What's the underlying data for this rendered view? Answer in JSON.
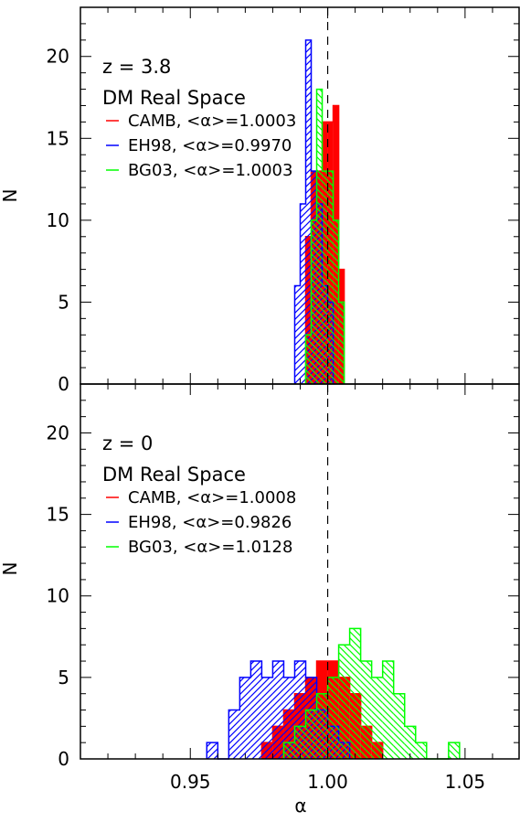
{
  "figure": {
    "xlabel": "α",
    "ylabel": "N"
  },
  "chart_data": [
    {
      "type": "histogram",
      "panel": "top",
      "annotation_lines": [
        "z = 3.8",
        "DM Real Space"
      ],
      "xlim": [
        0.91,
        1.07
      ],
      "ylim": [
        0,
        23
      ],
      "reference_line_x": 1.0,
      "xticks": [
        0.95,
        1.0,
        1.05
      ],
      "yticks": [
        0,
        5,
        10,
        15,
        20
      ],
      "ytick_labels": [
        "0",
        "5",
        "10",
        "15",
        "20"
      ],
      "xtick_labels": [],
      "ylabel": "N",
      "xlabel": "",
      "series": [
        {
          "name": "CAMB",
          "legend_label": "CAMB, <α>=1.0003",
          "style": "filled",
          "color": "#ff0000",
          "bins": [
            [
              0.992,
              0.994,
              9
            ],
            [
              0.994,
              0.996,
              13
            ],
            [
              0.996,
              0.998,
              13
            ],
            [
              0.998,
              1.0,
              16
            ],
            [
              1.0,
              1.002,
              16
            ],
            [
              1.002,
              1.004,
              17
            ],
            [
              1.004,
              1.006,
              7
            ]
          ]
        },
        {
          "name": "EH98",
          "legend_label": "EH98, <α>=0.9970",
          "style": "hatched",
          "color": "#0000ff",
          "bins": [
            [
              0.988,
              0.99,
              6
            ],
            [
              0.99,
              0.992,
              11
            ],
            [
              0.992,
              0.994,
              21
            ],
            [
              0.994,
              0.996,
              13
            ],
            [
              0.996,
              0.998,
              11
            ],
            [
              0.998,
              1.0,
              6
            ],
            [
              1.0,
              1.002,
              5
            ]
          ]
        },
        {
          "name": "BG03",
          "legend_label": "BG03, <α>=1.0003",
          "style": "hatched",
          "color": "#00ff00",
          "bins": [
            [
              0.992,
              0.994,
              3
            ],
            [
              0.994,
              0.996,
              10
            ],
            [
              0.996,
              0.998,
              18
            ],
            [
              0.998,
              1.0,
              13
            ],
            [
              1.0,
              1.002,
              13
            ],
            [
              1.002,
              1.004,
              10
            ],
            [
              1.004,
              1.006,
              5
            ]
          ]
        }
      ]
    },
    {
      "type": "histogram",
      "panel": "bottom",
      "annotation_lines": [
        "z = 0",
        "DM Real Space"
      ],
      "xlim": [
        0.91,
        1.07
      ],
      "ylim": [
        0,
        23
      ],
      "reference_line_x": 1.0,
      "xticks": [
        0.95,
        1.0,
        1.05
      ],
      "yticks": [
        0,
        5,
        10,
        15,
        20
      ],
      "ytick_labels": [
        "0",
        "5",
        "10",
        "15",
        "20"
      ],
      "xtick_labels": [
        "0.95",
        "1.00",
        "1.05"
      ],
      "ylabel": "N",
      "xlabel": "α",
      "series": [
        {
          "name": "CAMB",
          "legend_label": "CAMB, <α>=1.0008",
          "style": "filled",
          "color": "#ff0000",
          "bins": [
            [
              0.976,
              0.98,
              1
            ],
            [
              0.98,
              0.984,
              2
            ],
            [
              0.984,
              0.988,
              3
            ],
            [
              0.988,
              0.992,
              4
            ],
            [
              0.992,
              0.996,
              5
            ],
            [
              0.996,
              1.0,
              6
            ],
            [
              1.0,
              1.004,
              6
            ],
            [
              1.004,
              1.008,
              5
            ],
            [
              1.008,
              1.012,
              4
            ],
            [
              1.012,
              1.016,
              2
            ],
            [
              1.016,
              1.02,
              1
            ]
          ]
        },
        {
          "name": "EH98",
          "legend_label": "EH98, <α>=0.9826",
          "style": "hatched",
          "color": "#0000ff",
          "bins": [
            [
              0.956,
              0.96,
              1
            ],
            [
              0.96,
              0.964,
              0
            ],
            [
              0.964,
              0.968,
              3
            ],
            [
              0.968,
              0.972,
              5
            ],
            [
              0.972,
              0.976,
              6
            ],
            [
              0.976,
              0.98,
              5
            ],
            [
              0.98,
              0.984,
              6
            ],
            [
              0.984,
              0.988,
              5
            ],
            [
              0.988,
              0.992,
              6
            ],
            [
              0.992,
              0.996,
              5
            ],
            [
              0.996,
              1.0,
              3
            ],
            [
              1.0,
              1.004,
              2
            ],
            [
              1.004,
              1.008,
              1
            ]
          ]
        },
        {
          "name": "BG03",
          "legend_label": "BG03, <α>=1.0128",
          "style": "hatched",
          "color": "#00ff00",
          "bins": [
            [
              0.984,
              0.988,
              1
            ],
            [
              0.988,
              0.992,
              2
            ],
            [
              0.992,
              0.996,
              3
            ],
            [
              0.996,
              1.0,
              4
            ],
            [
              1.0,
              1.004,
              5
            ],
            [
              1.004,
              1.008,
              7
            ],
            [
              1.008,
              1.012,
              8
            ],
            [
              1.012,
              1.016,
              6
            ],
            [
              1.016,
              1.02,
              5
            ],
            [
              1.02,
              1.024,
              6
            ],
            [
              1.024,
              1.028,
              4
            ],
            [
              1.028,
              1.032,
              2
            ],
            [
              1.032,
              1.036,
              1
            ],
            [
              1.036,
              1.04,
              0
            ],
            [
              1.04,
              1.044,
              0
            ],
            [
              1.044,
              1.048,
              1
            ]
          ]
        }
      ]
    }
  ]
}
